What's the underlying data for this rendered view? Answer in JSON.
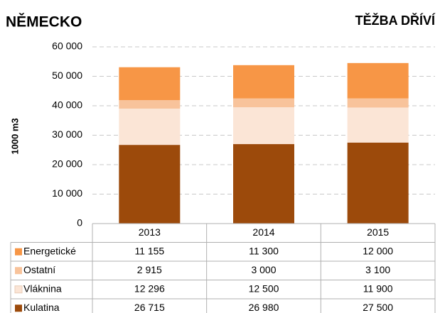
{
  "chart_data": {
    "type": "stacked_bar",
    "title": "NĚMECKO",
    "subtitle": "TĚŽBA DŘÍVÍ",
    "y_label": "1000 m3",
    "categories": [
      "2013",
      "2014",
      "2015"
    ],
    "series": [
      {
        "name": "Kulatina",
        "color": "#9c4a0b",
        "values": [
          26715,
          26980,
          27500
        ],
        "value_labels": [
          "26 715",
          "26 980",
          "27 500"
        ]
      },
      {
        "name": "Vláknina",
        "color": "#fbe5d6",
        "values": [
          12296,
          12500,
          11900
        ],
        "value_labels": [
          "12 296",
          "12 500",
          "11 900"
        ]
      },
      {
        "name": "Ostatní",
        "color": "#f8c39b",
        "values": [
          2915,
          3000,
          3100
        ],
        "value_labels": [
          "2 915",
          "3 000",
          "3 100"
        ]
      },
      {
        "name": "Energetické",
        "color": "#f79646",
        "values": [
          11155,
          11300,
          12000
        ],
        "value_labels": [
          "11 155",
          "11 300",
          "12 000"
        ]
      }
    ],
    "ylim": [
      0,
      60000
    ],
    "yticks": [
      0,
      {
        "value": 10000,
        "label": "10 000"
      },
      {
        "value": 20000,
        "label": "20 000"
      },
      {
        "value": 30000,
        "label": "30 000"
      },
      {
        "value": 40000,
        "label": "40 000"
      },
      {
        "value": 50000,
        "label": "50 000"
      },
      {
        "value": 60000,
        "label": "60 000"
      }
    ],
    "grid": true
  }
}
